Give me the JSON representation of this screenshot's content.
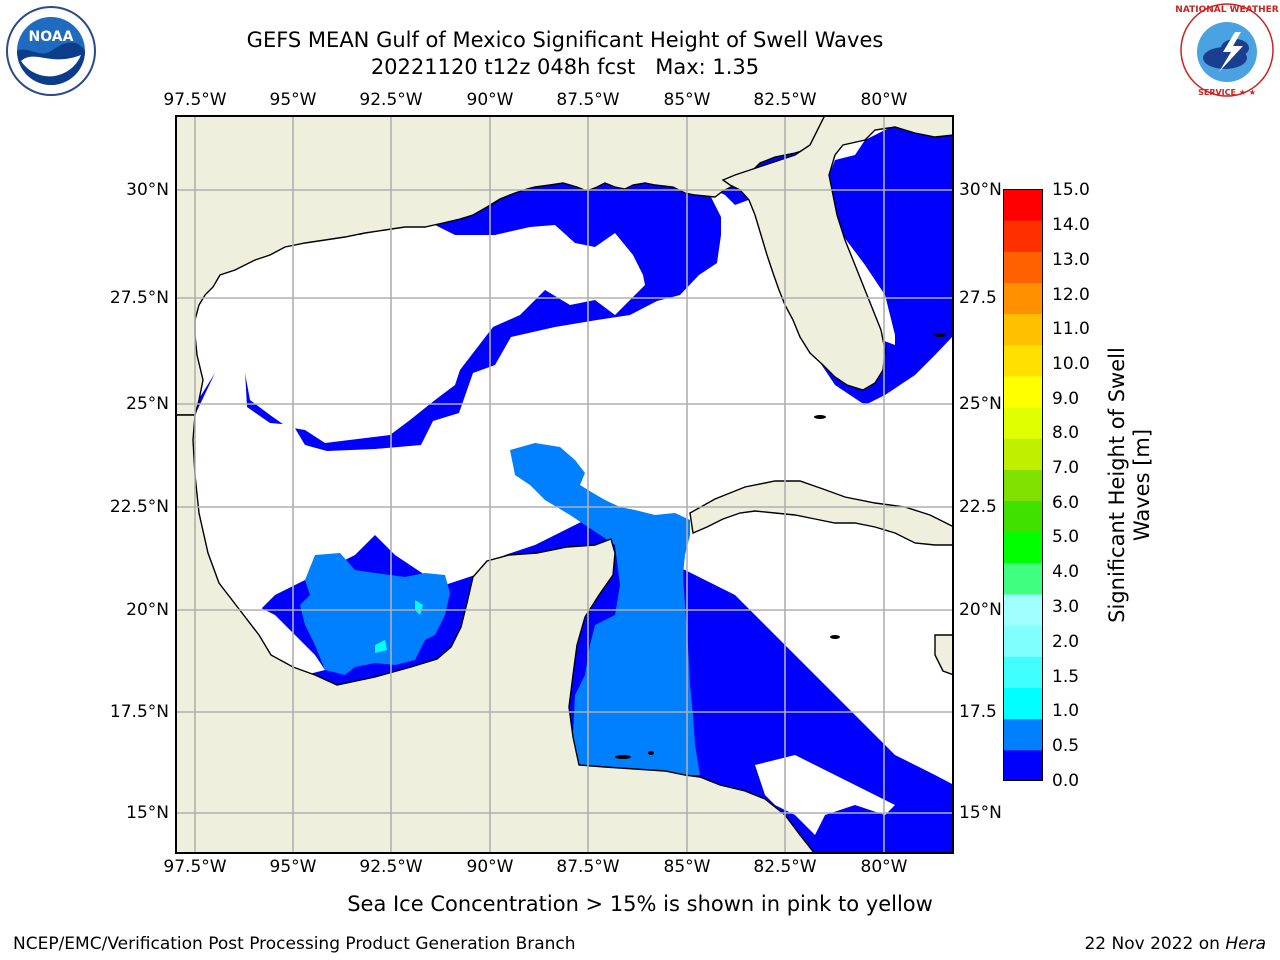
{
  "title": {
    "line1": "GEFS MEAN Gulf of Mexico Significant Height of Swell Waves",
    "line2": "20221120 t12z 048h fcst   Max: 1.35"
  },
  "logos": {
    "left": "NOAA",
    "right": "NATIONAL WEATHER SERVICE"
  },
  "map": {
    "lon_labels": [
      "97.5°W",
      "95°W",
      "92.5°W",
      "90°W",
      "87.5°W",
      "85°W",
      "82.5°W",
      "80°W"
    ],
    "lat_labels": [
      "30°N",
      "27.5°N",
      "25°N",
      "22.5°N",
      "20°N",
      "17.5°N",
      "15°N"
    ],
    "lat_labels_right": [
      "30°N",
      "27.5",
      "25°N",
      "22.5",
      "20°N",
      "17.5",
      "15°N"
    ],
    "lon_range": [
      -98,
      -79
    ],
    "lat_range": [
      14,
      32
    ],
    "colors": {
      "land": "#efefdd",
      "nodata": "#ffffff",
      "grid": "#b0b0b0",
      "coast": "#000000"
    }
  },
  "colorbar": {
    "title": "Significant Height of Swell Waves [m]",
    "ticks": [
      "15.0",
      "14.0",
      "13.0",
      "12.0",
      "11.0",
      "10.0",
      "9.0",
      "8.0",
      "7.0",
      "6.0",
      "5.0",
      "4.0",
      "3.0",
      "2.0",
      "1.5",
      "1.0",
      "0.5",
      "0.0"
    ],
    "colors": [
      "#0000ff",
      "#0080ff",
      "#00ffff",
      "#40ffff",
      "#80ffff",
      "#a0ffff",
      "#40ff80",
      "#00ff00",
      "#40e000",
      "#80e000",
      "#c0f000",
      "#e0ff00",
      "#ffff00",
      "#ffe000",
      "#ffc000",
      "#ff9000",
      "#ff6000",
      "#ff3000",
      "#ff0000"
    ]
  },
  "footer": {
    "sea_ice_note": "Sea Ice Concentration > 15% is shown in pink to yellow",
    "credit": "NCEP/EMC/Verification Post Processing Product Generation Branch",
    "date": "22 Nov 2022 on",
    "host": "Hera"
  }
}
